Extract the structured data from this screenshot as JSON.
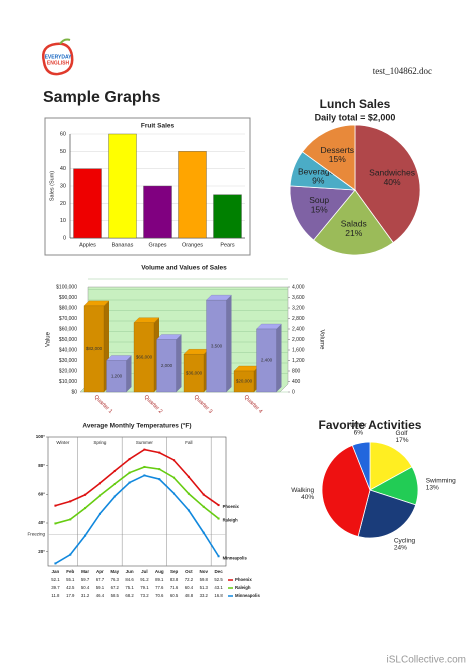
{
  "header": {
    "logo": [
      "EVERYDAY",
      "ENGLISH"
    ],
    "filename": "test_104862.doc"
  },
  "title": "Sample Graphs",
  "footer": "iSLCollective.com",
  "chart_data": [
    {
      "type": "bar",
      "title": "Fruit Sales",
      "ylabel": "Sales (Sum)",
      "categories": [
        "Apples",
        "Bananas",
        "Grapes",
        "Oranges",
        "Pears"
      ],
      "values": [
        40,
        60,
        30,
        50,
        25
      ],
      "colors": [
        "#ee0000",
        "#ffff00",
        "#800080",
        "#ffa500",
        "#008000"
      ],
      "ylim": [
        0,
        60
      ],
      "yticks": [
        0,
        10,
        20,
        30,
        40,
        50,
        60
      ],
      "grid": true
    },
    {
      "type": "pie",
      "title": "Lunch Sales",
      "subtitle": "Daily total = $2,000",
      "labels": "inside",
      "categories": [
        "Sandwiches",
        "Salads",
        "Soup",
        "Beverages",
        "Desserts"
      ],
      "values": [
        40,
        21,
        15,
        9,
        15
      ],
      "value_labels": [
        "40%",
        "21%",
        "15%",
        "9%",
        "15%"
      ],
      "colors": [
        "#b0474a",
        "#9bbb59",
        "#7f62a4",
        "#4bacc6",
        "#e8893a"
      ]
    },
    {
      "type": "bar3d",
      "title": "Volume and Values of Sales",
      "ylabel": "Value",
      "y2label": "Volume",
      "categories": [
        "Quarter 1",
        "Quarter 2",
        "Quarter 3",
        "Quarter 4"
      ],
      "series": [
        {
          "color": "#f0a000",
          "values": [
            82000,
            66000,
            36000,
            20000
          ],
          "value_labels": [
            "$82,000",
            "$66,000",
            "$36,000",
            "$20,000"
          ]
        },
        {
          "color": "#a8a8f0",
          "axis": "y2",
          "values": [
            1200,
            2000,
            3500,
            2400
          ],
          "value_labels": [
            "1,200",
            "2,000",
            "3,500",
            "2,400"
          ]
        }
      ],
      "ylim": [
        0,
        100000
      ],
      "yticks": [
        {
          "value": 0,
          "label": "$0"
        },
        {
          "value": 10000,
          "label": "$10,000"
        },
        {
          "value": 20000,
          "label": "$20,000"
        },
        {
          "value": 30000,
          "label": "$30,000"
        },
        {
          "value": 40000,
          "label": "$40,000"
        },
        {
          "value": 50000,
          "label": "$50,000"
        },
        {
          "value": 60000,
          "label": "$60,000"
        },
        {
          "value": 70000,
          "label": "$70,000"
        },
        {
          "value": 80000,
          "label": "$80,000"
        },
        {
          "value": 90000,
          "label": "$90,000"
        },
        {
          "value": 100000,
          "label": "$100,000"
        }
      ],
      "y2lim": [
        0,
        4000
      ],
      "y2ticks": [
        0,
        400,
        800,
        {
          "value": 1200,
          "label": "1,200"
        },
        {
          "value": 1600,
          "label": "1,600"
        },
        {
          "value": 2000,
          "label": "2,000"
        },
        {
          "value": 2400,
          "label": "2,400"
        },
        {
          "value": 2800,
          "label": "2,800"
        },
        {
          "value": 3200,
          "label": "3,200"
        },
        {
          "value": 3600,
          "label": "3,600"
        },
        {
          "value": 4000,
          "label": "4,000"
        }
      ],
      "background": "#c8f0c0"
    },
    {
      "type": "line",
      "title": "Average Monthly Temperatures (°F)",
      "categories": [
        "Jan",
        "Feb",
        "Mar",
        "Apr",
        "May",
        "Jun",
        "Jul",
        "Aug",
        "Sep",
        "Oct",
        "Nov",
        "Dec"
      ],
      "seasons": [
        "Winter",
        "Spring",
        "Summer",
        "Fall"
      ],
      "ylim": [
        10,
        100
      ],
      "yticks": [
        {
          "value": 20,
          "label": "20°"
        },
        {
          "value": 40,
          "label": "40°"
        },
        {
          "value": 60,
          "label": "60°"
        },
        {
          "value": 80,
          "label": "80°"
        },
        {
          "value": 100,
          "label": "100°"
        }
      ],
      "freezing": {
        "value": 32,
        "label": "Freezing"
      },
      "series": [
        {
          "name": "Phoenix",
          "color": "#dd1111",
          "values": [
            52.1,
            55.1,
            59.7,
            67.7,
            76.3,
            84.6,
            91.2,
            89.1,
            83.8,
            72.2,
            59.8,
            52.5
          ]
        },
        {
          "name": "Raleigh",
          "color": "#66cc11",
          "values": [
            39.7,
            42.5,
            50.4,
            59.1,
            67.2,
            75.1,
            79.1,
            77.6,
            71.6,
            60.4,
            51.3,
            43.1
          ]
        },
        {
          "name": "Minneapolis",
          "color": "#1188dd",
          "values": [
            11.8,
            17.9,
            31.2,
            46.4,
            58.5,
            68.2,
            73.2,
            70.6,
            60.5,
            48.8,
            33.2,
            16.8
          ]
        }
      ]
    },
    {
      "type": "pie",
      "title": "Favorite Activities",
      "labels": "outside",
      "categories": [
        "Golf",
        "Swimming",
        "Cycling",
        "Walking",
        "Other"
      ],
      "values": [
        17,
        13,
        24,
        40,
        6
      ],
      "value_labels": [
        "17%",
        "13%",
        "24%",
        "40%",
        "6%"
      ],
      "colors": [
        "#ffee22",
        "#22cc55",
        "#1a3c7a",
        "#ee1111",
        "#2266dd"
      ]
    }
  ]
}
